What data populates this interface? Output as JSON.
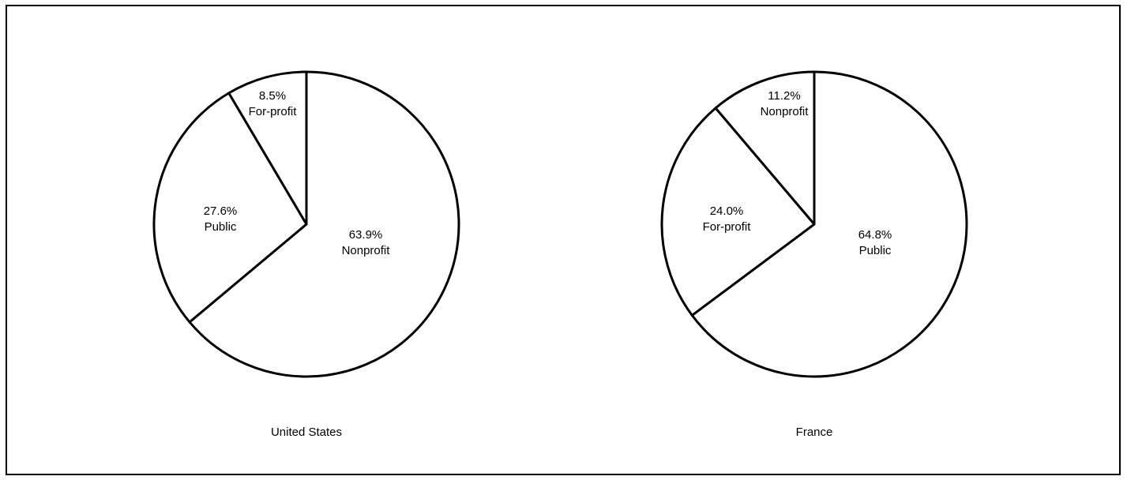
{
  "chart_data": [
    {
      "type": "pie",
      "title": "United States",
      "slices": [
        {
          "label": "Nonprofit",
          "value": 63.9,
          "value_label": "63.9%"
        },
        {
          "label": "Public",
          "value": 27.6,
          "value_label": "27.6%"
        },
        {
          "label": "For-profit",
          "value": 8.5,
          "value_label": "8.5%"
        }
      ]
    },
    {
      "type": "pie",
      "title": "France",
      "slices": [
        {
          "label": "Public",
          "value": 64.8,
          "value_label": "64.8%"
        },
        {
          "label": "For-profit",
          "value": 24.0,
          "value_label": "24.0%"
        },
        {
          "label": "Nonprofit",
          "value": 11.2,
          "value_label": "11.2%"
        }
      ]
    }
  ]
}
